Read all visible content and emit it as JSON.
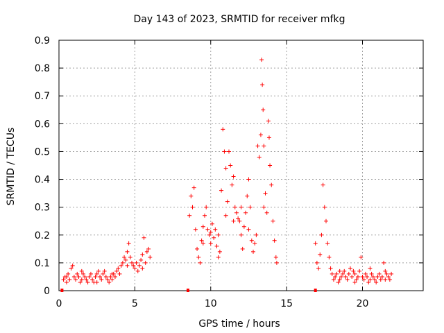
{
  "chart_data": {
    "type": "scatter",
    "title": "Day 143 of 2023, SRMTID for receiver mfkg",
    "xlabel": "GPS time / hours",
    "ylabel": "SRMTID / TECUs",
    "xlim": [
      0,
      24
    ],
    "ylim": [
      0,
      0.9
    ],
    "xticks": [
      0,
      5,
      10,
      15,
      20
    ],
    "yticks": [
      0,
      0.1,
      0.2,
      0.3,
      0.4,
      0.5,
      0.6,
      0.7,
      0.8,
      0.9
    ],
    "ytick_labels": [
      "0",
      "0.1",
      "0.2",
      "0.3",
      "0.4",
      "0.5",
      "0.6",
      "0.7",
      "0.8",
      "0.9"
    ],
    "grid": true,
    "marker": "+",
    "color": "#ff0000",
    "gap_markers_x": [
      0.2,
      8.5,
      16.9
    ],
    "series": [
      {
        "name": "SRMTID",
        "points": [
          [
            0.3,
            0.04
          ],
          [
            0.4,
            0.05
          ],
          [
            0.5,
            0.03
          ],
          [
            0.6,
            0.06
          ],
          [
            0.7,
            0.04
          ],
          [
            0.8,
            0.08
          ],
          [
            0.9,
            0.09
          ],
          [
            1.0,
            0.05
          ],
          [
            1.1,
            0.04
          ],
          [
            1.2,
            0.06
          ],
          [
            1.3,
            0.05
          ],
          [
            1.4,
            0.03
          ],
          [
            1.5,
            0.04
          ],
          [
            1.6,
            0.06
          ],
          [
            1.7,
            0.05
          ],
          [
            1.8,
            0.04
          ],
          [
            1.9,
            0.03
          ],
          [
            2.0,
            0.05
          ],
          [
            2.1,
            0.06
          ],
          [
            2.2,
            0.04
          ],
          [
            2.3,
            0.03
          ],
          [
            2.4,
            0.05
          ],
          [
            2.5,
            0.06
          ],
          [
            2.6,
            0.07
          ],
          [
            2.7,
            0.05
          ],
          [
            2.8,
            0.04
          ],
          [
            2.9,
            0.06
          ],
          [
            3.0,
            0.07
          ],
          [
            3.1,
            0.05
          ],
          [
            3.2,
            0.04
          ],
          [
            3.3,
            0.03
          ],
          [
            3.4,
            0.05
          ],
          [
            3.5,
            0.04
          ],
          [
            3.6,
            0.06
          ],
          [
            3.7,
            0.05
          ],
          [
            3.8,
            0.07
          ],
          [
            3.9,
            0.08
          ],
          [
            4.0,
            0.06
          ],
          [
            4.1,
            0.09
          ],
          [
            4.2,
            0.1
          ],
          [
            4.3,
            0.12
          ],
          [
            4.4,
            0.11
          ],
          [
            4.5,
            0.14
          ],
          [
            4.6,
            0.17
          ],
          [
            4.7,
            0.12
          ],
          [
            4.8,
            0.1
          ],
          [
            4.9,
            0.09
          ],
          [
            5.0,
            0.08
          ],
          [
            5.1,
            0.1
          ],
          [
            5.2,
            0.07
          ],
          [
            5.3,
            0.09
          ],
          [
            5.4,
            0.11
          ],
          [
            5.5,
            0.13
          ],
          [
            5.6,
            0.19
          ],
          [
            5.7,
            0.1
          ],
          [
            5.8,
            0.14
          ],
          [
            5.9,
            0.15
          ],
          [
            6.0,
            0.12
          ],
          [
            0.5,
            0.05
          ],
          [
            1.5,
            0.07
          ],
          [
            2.5,
            0.03
          ],
          [
            3.5,
            0.06
          ],
          [
            4.5,
            0.09
          ],
          [
            5.5,
            0.08
          ],
          [
            8.6,
            0.27
          ],
          [
            8.7,
            0.34
          ],
          [
            8.8,
            0.3
          ],
          [
            8.9,
            0.37
          ],
          [
            9.0,
            0.22
          ],
          [
            9.1,
            0.15
          ],
          [
            9.2,
            0.12
          ],
          [
            9.3,
            0.1
          ],
          [
            9.4,
            0.18
          ],
          [
            9.5,
            0.23
          ],
          [
            9.6,
            0.27
          ],
          [
            9.7,
            0.3
          ],
          [
            9.8,
            0.22
          ],
          [
            9.9,
            0.2
          ],
          [
            10.0,
            0.17
          ],
          [
            10.1,
            0.24
          ],
          [
            10.2,
            0.19
          ],
          [
            10.3,
            0.22
          ],
          [
            10.4,
            0.16
          ],
          [
            10.5,
            0.12
          ],
          [
            10.6,
            0.14
          ],
          [
            10.7,
            0.36
          ],
          [
            10.8,
            0.58
          ],
          [
            10.9,
            0.5
          ],
          [
            11.0,
            0.44
          ],
          [
            11.1,
            0.32
          ],
          [
            11.2,
            0.5
          ],
          [
            11.3,
            0.45
          ],
          [
            11.4,
            0.38
          ],
          [
            11.5,
            0.41
          ],
          [
            11.6,
            0.3
          ],
          [
            11.7,
            0.28
          ],
          [
            11.8,
            0.26
          ],
          [
            11.9,
            0.25
          ],
          [
            12.0,
            0.2
          ],
          [
            12.1,
            0.15
          ],
          [
            12.2,
            0.23
          ],
          [
            12.3,
            0.28
          ],
          [
            12.4,
            0.34
          ],
          [
            12.5,
            0.4
          ],
          [
            12.6,
            0.3
          ],
          [
            12.7,
            0.18
          ],
          [
            12.8,
            0.14
          ],
          [
            12.9,
            0.17
          ],
          [
            13.0,
            0.2
          ],
          [
            13.1,
            0.52
          ],
          [
            13.2,
            0.48
          ],
          [
            13.3,
            0.56
          ],
          [
            13.35,
            0.83
          ],
          [
            13.4,
            0.74
          ],
          [
            13.45,
            0.65
          ],
          [
            13.5,
            0.52
          ],
          [
            13.6,
            0.35
          ],
          [
            13.7,
            0.28
          ],
          [
            13.8,
            0.61
          ],
          [
            13.85,
            0.55
          ],
          [
            13.9,
            0.45
          ],
          [
            14.0,
            0.38
          ],
          [
            14.1,
            0.25
          ],
          [
            14.2,
            0.18
          ],
          [
            14.3,
            0.12
          ],
          [
            14.35,
            0.1
          ],
          [
            9.5,
            0.17
          ],
          [
            10.5,
            0.2
          ],
          [
            11.5,
            0.25
          ],
          [
            12.5,
            0.22
          ],
          [
            13.5,
            0.3
          ],
          [
            10.0,
            0.21
          ],
          [
            11.0,
            0.27
          ],
          [
            12.0,
            0.3
          ],
          [
            16.9,
            0.17
          ],
          [
            17.0,
            0.1
          ],
          [
            17.1,
            0.08
          ],
          [
            17.2,
            0.13
          ],
          [
            17.3,
            0.2
          ],
          [
            17.4,
            0.38
          ],
          [
            17.5,
            0.3
          ],
          [
            17.6,
            0.25
          ],
          [
            17.7,
            0.17
          ],
          [
            17.8,
            0.12
          ],
          [
            17.9,
            0.08
          ],
          [
            18.0,
            0.06
          ],
          [
            18.1,
            0.04
          ],
          [
            18.2,
            0.05
          ],
          [
            18.3,
            0.06
          ],
          [
            18.4,
            0.03
          ],
          [
            18.5,
            0.04
          ],
          [
            18.6,
            0.05
          ],
          [
            18.7,
            0.06
          ],
          [
            18.8,
            0.07
          ],
          [
            18.9,
            0.05
          ],
          [
            19.0,
            0.04
          ],
          [
            19.1,
            0.06
          ],
          [
            19.2,
            0.08
          ],
          [
            19.3,
            0.05
          ],
          [
            19.4,
            0.07
          ],
          [
            19.5,
            0.06
          ],
          [
            19.6,
            0.04
          ],
          [
            19.7,
            0.05
          ],
          [
            19.8,
            0.07
          ],
          [
            19.9,
            0.12
          ],
          [
            20.0,
            0.05
          ],
          [
            20.1,
            0.04
          ],
          [
            20.2,
            0.06
          ],
          [
            20.3,
            0.05
          ],
          [
            20.4,
            0.03
          ],
          [
            20.5,
            0.04
          ],
          [
            20.6,
            0.06
          ],
          [
            20.7,
            0.05
          ],
          [
            20.8,
            0.04
          ],
          [
            20.9,
            0.03
          ],
          [
            21.0,
            0.05
          ],
          [
            21.1,
            0.06
          ],
          [
            21.2,
            0.04
          ],
          [
            21.3,
            0.05
          ],
          [
            21.4,
            0.1
          ],
          [
            21.5,
            0.07
          ],
          [
            21.6,
            0.06
          ],
          [
            21.7,
            0.05
          ],
          [
            21.8,
            0.04
          ],
          [
            21.9,
            0.06
          ],
          [
            18.5,
            0.07
          ],
          [
            19.5,
            0.03
          ],
          [
            20.5,
            0.08
          ],
          [
            21.5,
            0.04
          ]
        ]
      }
    ]
  }
}
